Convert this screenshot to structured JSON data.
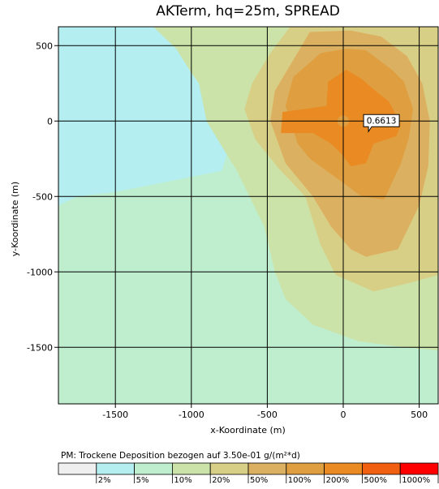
{
  "chart_data": {
    "type": "heatmap",
    "title": "AKTerm, hq=25m, SPREAD",
    "xlabel": "x-Koordinate (m)",
    "ylabel": "y-Koordinate (m)",
    "xlim": [
      -1875,
      625
    ],
    "ylim": [
      -1875,
      625
    ],
    "x_ticks": [
      "-1500",
      "-1000",
      "-500",
      "0",
      "500"
    ],
    "y_ticks": [
      "500",
      "0",
      "-500",
      "-1000",
      "-1500"
    ],
    "x_tick_values": [
      -1500,
      -1000,
      -500,
      0,
      500
    ],
    "y_tick_values": [
      500,
      0,
      -500,
      -1000,
      -1500
    ],
    "grid": true,
    "max_label": "0.6613",
    "max_location": [
      150,
      0
    ],
    "legend_title": "PM: Trockene Deposition bezogen auf 3.50e-01 g/(m²*d)",
    "legend": [
      {
        "label": "",
        "color": "#efefef"
      },
      {
        "label": "2%",
        "color": "#b4eef0"
      },
      {
        "label": "5%",
        "color": "#bfeecf"
      },
      {
        "label": "10%",
        "color": "#cbe3a8"
      },
      {
        "label": "20%",
        "color": "#d8cf86"
      },
      {
        "label": "50%",
        "color": "#dcb061"
      },
      {
        "label": "100%",
        "color": "#df9f40"
      },
      {
        "label": "200%",
        "color": "#ea8a22"
      },
      {
        "label": "500%",
        "color": "#f06010"
      },
      {
        "label": "1000%",
        "color": "#ff0000"
      }
    ],
    "contours": [
      {
        "level": "5%",
        "polygon": [
          [
            -1875,
            -1875
          ],
          [
            -1875,
            -560
          ],
          [
            -1750,
            -500
          ],
          [
            -1500,
            -470
          ],
          [
            -1250,
            -420
          ],
          [
            -1000,
            -370
          ],
          [
            -800,
            -330
          ],
          [
            -760,
            -200
          ],
          [
            -730,
            -50
          ],
          [
            -820,
            200
          ],
          [
            -950,
            470
          ],
          [
            -1150,
            625
          ],
          [
            625,
            625
          ],
          [
            625,
            -1875
          ]
        ]
      },
      {
        "level": "10%",
        "polygon": [
          [
            -1250,
            625
          ],
          [
            -1100,
            480
          ],
          [
            -1000,
            320
          ],
          [
            -950,
            250
          ],
          [
            -900,
            0
          ],
          [
            -810,
            -150
          ],
          [
            -700,
            -330
          ],
          [
            -520,
            -700
          ],
          [
            -450,
            -1000
          ],
          [
            -380,
            -1180
          ],
          [
            -200,
            -1350
          ],
          [
            100,
            -1460
          ],
          [
            400,
            -1500
          ],
          [
            625,
            -1520
          ],
          [
            625,
            625
          ]
        ]
      },
      {
        "level": "20%",
        "polygon": [
          [
            -350,
            625
          ],
          [
            -480,
            450
          ],
          [
            -600,
            250
          ],
          [
            -650,
            80
          ],
          [
            -580,
            -120
          ],
          [
            -420,
            -320
          ],
          [
            -250,
            -500
          ],
          [
            -150,
            -820
          ],
          [
            -50,
            -1020
          ],
          [
            200,
            -1130
          ],
          [
            450,
            -1070
          ],
          [
            625,
            -1020
          ],
          [
            625,
            625
          ]
        ]
      },
      {
        "level": "50%",
        "polygon": [
          [
            -220,
            590
          ],
          [
            -320,
            420
          ],
          [
            -450,
            200
          ],
          [
            -480,
            0
          ],
          [
            -380,
            -280
          ],
          [
            -200,
            -500
          ],
          [
            -80,
            -700
          ],
          [
            50,
            -850
          ],
          [
            150,
            -900
          ],
          [
            360,
            -850
          ],
          [
            500,
            -560
          ],
          [
            560,
            -300
          ],
          [
            570,
            0
          ],
          [
            520,
            250
          ],
          [
            420,
            430
          ],
          [
            250,
            560
          ],
          [
            50,
            600
          ]
        ]
      },
      {
        "level": "100%",
        "polygon": [
          [
            -150,
            450
          ],
          [
            -330,
            290
          ],
          [
            -380,
            100
          ],
          [
            -300,
            -150
          ],
          [
            -220,
            -250
          ],
          [
            0,
            -410
          ],
          [
            120,
            -500
          ],
          [
            270,
            -520
          ],
          [
            380,
            -280
          ],
          [
            430,
            -120
          ],
          [
            460,
            80
          ],
          [
            400,
            260
          ],
          [
            320,
            340
          ],
          [
            150,
            470
          ],
          [
            20,
            480
          ]
        ]
      },
      {
        "level": "200%",
        "polygon": [
          [
            20,
            340
          ],
          [
            -100,
            260
          ],
          [
            -110,
            100
          ],
          [
            -400,
            60
          ],
          [
            -410,
            -80
          ],
          [
            -200,
            -80
          ],
          [
            -80,
            -150
          ],
          [
            -10,
            -220
          ],
          [
            50,
            -300
          ],
          [
            150,
            -280
          ],
          [
            200,
            -150
          ],
          [
            350,
            -100
          ],
          [
            380,
            -20
          ],
          [
            300,
            130
          ],
          [
            200,
            210
          ],
          [
            120,
            280
          ]
        ]
      }
    ]
  }
}
